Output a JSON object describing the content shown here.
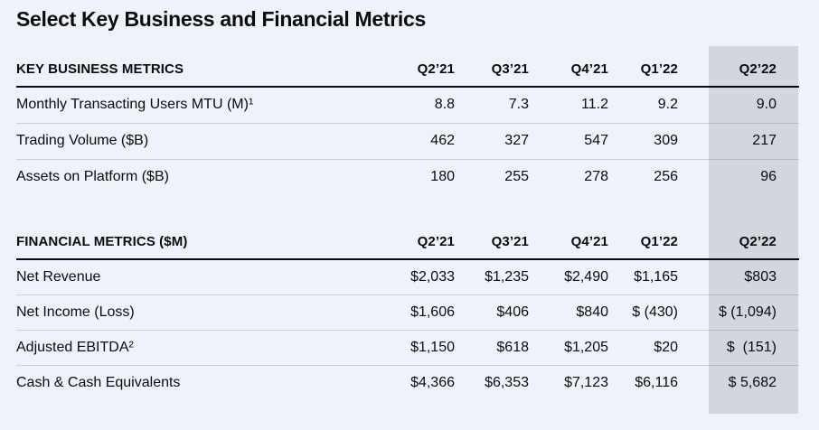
{
  "page": {
    "title": "Select Key Business and Financial Metrics",
    "background_color": "#eff3f9",
    "highlight_color": "#d2d6dd",
    "text_color": "#0a0b0d"
  },
  "columns": [
    "Q2’21",
    "Q3’21",
    "Q4’21",
    "Q1’22",
    "Q2’22"
  ],
  "highlighted_column": "Q2’22",
  "sections": [
    {
      "header": "KEY BUSINESS METRICS",
      "rows": [
        {
          "label": "Monthly Transacting Users MTU (M)¹",
          "values": [
            "8.8",
            "7.3",
            "11.2",
            "9.2",
            "9.0"
          ]
        },
        {
          "label": "Trading Volume ($B)",
          "values": [
            "462",
            "327",
            "547",
            "309",
            "217"
          ]
        },
        {
          "label": "Assets on Platform ($B)",
          "values": [
            "180",
            "255",
            "278",
            "256",
            "96"
          ]
        }
      ]
    },
    {
      "header": "FINANCIAL METRICS ($M)",
      "rows": [
        {
          "label": "Net Revenue",
          "values": [
            "$2,033",
            "$1,235",
            "$2,490",
            "$1,165",
            "$803"
          ]
        },
        {
          "label": "Net Income (Loss)",
          "values": [
            "$1,606",
            "$406",
            "$840",
            "$ (430)",
            "$ (1,094)"
          ]
        },
        {
          "label": "Adjusted EBITDA²",
          "values": [
            "$1,150",
            "$618",
            "$1,205",
            "$20",
            "$  (151)"
          ]
        },
        {
          "label": "Cash & Cash Equivalents",
          "values": [
            "$4,366",
            "$6,353",
            "$7,123",
            "$6,116",
            "$ 5,682"
          ]
        }
      ]
    }
  ]
}
